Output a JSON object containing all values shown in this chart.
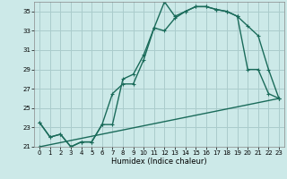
{
  "xlabel": "Humidex (Indice chaleur)",
  "bg_color": "#cce9e8",
  "grid_color": "#aacccc",
  "line_color": "#1a6b5a",
  "xlim": [
    -0.5,
    23.5
  ],
  "ylim": [
    21,
    36
  ],
  "yticks": [
    21,
    23,
    25,
    27,
    29,
    31,
    33,
    35
  ],
  "xticks": [
    0,
    1,
    2,
    3,
    4,
    5,
    6,
    7,
    8,
    9,
    10,
    11,
    12,
    13,
    14,
    15,
    16,
    17,
    18,
    19,
    20,
    21,
    22,
    23
  ],
  "series1_x": [
    0,
    1,
    2,
    3,
    4,
    5,
    6,
    7,
    8,
    9,
    10,
    11,
    12,
    13,
    14,
    15,
    16,
    17,
    18,
    19,
    20,
    21,
    22,
    23
  ],
  "series1_y": [
    23.5,
    22.0,
    22.3,
    21.0,
    21.5,
    21.5,
    23.3,
    23.3,
    28.0,
    28.5,
    30.5,
    33.3,
    36.0,
    34.5,
    35.0,
    35.5,
    35.5,
    35.2,
    35.0,
    34.5,
    29.0,
    29.0,
    26.5,
    26.0
  ],
  "series2_x": [
    0,
    1,
    2,
    3,
    4,
    5,
    6,
    7,
    8,
    9,
    10,
    11,
    12,
    13,
    14,
    15,
    16,
    17,
    18,
    19,
    20,
    21,
    22,
    23
  ],
  "series2_y": [
    23.5,
    22.0,
    22.3,
    21.0,
    21.5,
    21.5,
    23.3,
    26.5,
    27.5,
    27.5,
    30.0,
    33.3,
    33.0,
    34.3,
    35.0,
    35.5,
    35.5,
    35.2,
    35.0,
    34.5,
    33.5,
    32.5,
    29.0,
    26.0
  ],
  "series3_x": [
    0,
    23
  ],
  "series3_y": [
    21.0,
    26.0
  ]
}
